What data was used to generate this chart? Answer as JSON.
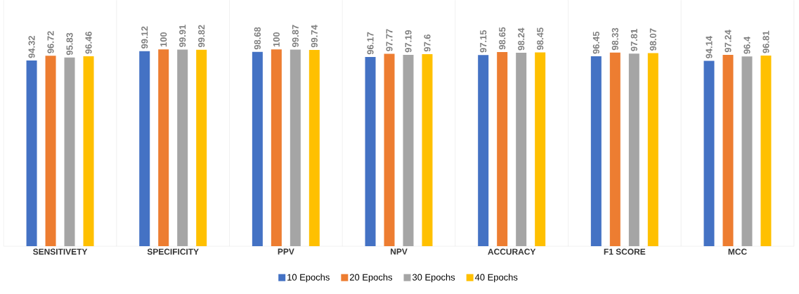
{
  "chart_data": {
    "type": "bar",
    "categories": [
      "SENSITIVETY",
      "SPECIFICITY",
      "PPV",
      "NPV",
      "ACCURACY",
      "F1 SCORE",
      "MCC"
    ],
    "series": [
      {
        "name": "10 Epochs",
        "color": "#4472c4",
        "values": [
          94.32,
          99.12,
          98.68,
          96.17,
          97.15,
          96.45,
          94.14
        ]
      },
      {
        "name": "20 Epochs",
        "color": "#ed7d31",
        "values": [
          96.72,
          100,
          100,
          97.77,
          98.65,
          98.33,
          97.24
        ]
      },
      {
        "name": "30 Epochs",
        "color": "#a5a5a5",
        "values": [
          95.83,
          99.91,
          99.87,
          97.19,
          98.24,
          97.81,
          96.4
        ]
      },
      {
        "name": "40 Epochs",
        "color": "#ffc000",
        "values": [
          96.46,
          99.82,
          99.74,
          97.6,
          98.45,
          98.07,
          96.81
        ]
      }
    ],
    "ylim": [
      0,
      125
    ],
    "data_labels": true,
    "grid": "x",
    "legend": "bottom"
  }
}
